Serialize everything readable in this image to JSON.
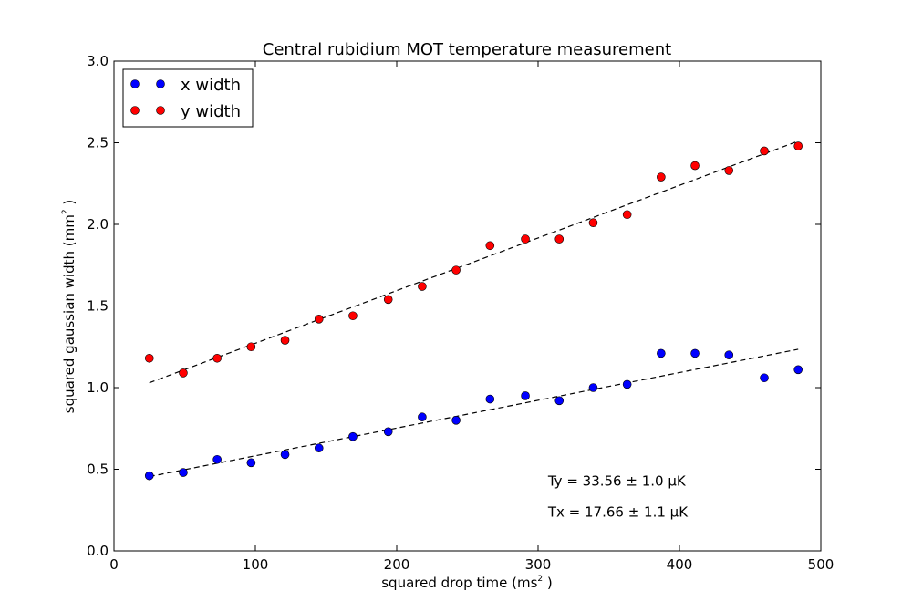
{
  "chart_data": {
    "type": "scatter",
    "title": "Central rubidium MOT temperature measurement",
    "xlabel": "squared drop time (ms",
    "xlabel_sup": "2",
    "xlabel_end": " )",
    "ylabel": "squared gaussian width (mm",
    "ylabel_sup": "2",
    "ylabel_end": " )",
    "xlim": [
      0,
      500
    ],
    "ylim": [
      0.0,
      3.0
    ],
    "xticks": [
      0,
      100,
      200,
      300,
      400,
      500
    ],
    "xtick_labels": [
      "0",
      "100",
      "200",
      "300",
      "400",
      "500"
    ],
    "yticks": [
      0.0,
      0.5,
      1.0,
      1.5,
      2.0,
      2.5,
      3.0
    ],
    "ytick_labels": [
      "0.0",
      "0.5",
      "1.0",
      "1.5",
      "2.0",
      "2.5",
      "3.0"
    ],
    "grid": false,
    "legend_position": "top-left",
    "series": [
      {
        "name": "x width",
        "color": "#0000ff",
        "x": [
          25,
          49,
          73,
          97,
          121,
          145,
          169,
          194,
          218,
          242,
          266,
          291,
          315,
          339,
          363,
          387,
          411,
          435,
          460,
          484
        ],
        "y": [
          0.46,
          0.48,
          0.56,
          0.54,
          0.59,
          0.63,
          0.7,
          0.73,
          0.82,
          0.8,
          0.93,
          0.95,
          0.92,
          1.0,
          1.02,
          1.21,
          1.21,
          1.2,
          1.06,
          1.11
        ]
      },
      {
        "name": "y width",
        "color": "#ff0000",
        "x": [
          25,
          49,
          73,
          97,
          121,
          145,
          169,
          194,
          218,
          242,
          266,
          291,
          315,
          339,
          363,
          387,
          411,
          435,
          460,
          484
        ],
        "y": [
          1.18,
          1.09,
          1.18,
          1.25,
          1.29,
          1.42,
          1.44,
          1.54,
          1.62,
          1.72,
          1.87,
          1.91,
          1.91,
          2.01,
          2.06,
          2.29,
          2.36,
          2.33,
          2.45,
          2.48
        ]
      }
    ],
    "fits": [
      {
        "series": "x width",
        "x": [
          25,
          484
        ],
        "y": [
          0.455,
          1.235
        ]
      },
      {
        "series": "y width",
        "x": [
          25,
          484
        ],
        "y": [
          1.03,
          2.51
        ]
      }
    ],
    "annotations": [
      {
        "text": "Ty = 33.56 ± 1.0 μK",
        "x": 307,
        "y": 0.4
      },
      {
        "text": "Tx = 17.66 ± 1.1 μK",
        "x": 307,
        "y": 0.21
      }
    ]
  }
}
